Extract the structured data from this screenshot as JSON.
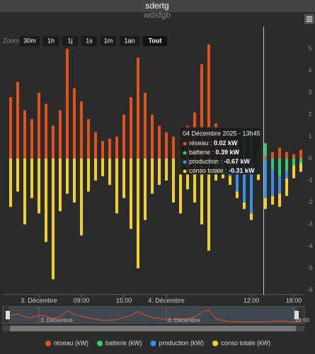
{
  "chart_data": {
    "type": "bar",
    "title": "sdertg",
    "subtitle": "wdsfgb",
    "zoom_label": "Zoom",
    "zoom_buttons": [
      "30m",
      "1h",
      "1j",
      "1s",
      "1m",
      "1an",
      "Tout"
    ],
    "x": [
      -22,
      -21,
      -20,
      -19,
      -18,
      -17,
      -16,
      -15,
      -14,
      -13,
      -12,
      -11,
      -10,
      -9,
      -8,
      -7,
      -6,
      -5,
      -4,
      -3,
      -2,
      -1,
      0,
      1,
      2,
      3,
      4,
      5,
      6,
      7,
      8,
      9,
      10,
      11,
      12,
      13,
      14,
      15,
      16,
      17,
      18,
      19
    ],
    "xlim": [
      -23,
      19.5
    ],
    "xticks": [
      {
        "value": -18,
        "label": "3. Décembre"
      },
      {
        "value": -12,
        "label": "09:00"
      },
      {
        "value": -6,
        "label": "15:00"
      },
      {
        "value": 0,
        "label": "4. Décembre"
      },
      {
        "value": 12,
        "label": "12:00"
      },
      {
        "value": 18,
        "label": "18:00"
      }
    ],
    "ylim": [
      -6,
      6
    ],
    "yticks": [
      -6,
      -5,
      -4,
      -3,
      -2,
      -1,
      0,
      1,
      2,
      3,
      4,
      5
    ],
    "series": [
      {
        "name": "réseau (kW)",
        "color": "#e4521b",
        "values": [
          2.8,
          3.5,
          2.2,
          1.8,
          3.0,
          2.5,
          1.5,
          2.2,
          5.0,
          3.2,
          2.6,
          1.8,
          1.2,
          0.8,
          0.9,
          1.0,
          2.0,
          2.8,
          4.6,
          3.0,
          2.0,
          1.5,
          1.2,
          1.0,
          1.3,
          1.5,
          2.1,
          4.3,
          5.2,
          1.6,
          0.6,
          0.3,
          0.2,
          0.1,
          0.1,
          0.02,
          0.1,
          0.3,
          0.5,
          0.3,
          0.2,
          0.4
        ]
      },
      {
        "name": "batterie (kW)",
        "color": "#2ecc71",
        "values": [
          0,
          0,
          0,
          0,
          0,
          0,
          0,
          0,
          0,
          0,
          0,
          0,
          0,
          0,
          0,
          0,
          0,
          0,
          0,
          0,
          0,
          0,
          0,
          0,
          0,
          0,
          0,
          0,
          0,
          0,
          0.1,
          0.3,
          0.5,
          1.0,
          1.2,
          0.39,
          0.6,
          -0.5,
          -0.8,
          -0.6,
          -0.3,
          -0.2
        ]
      },
      {
        "name": "production (kW)",
        "color": "#3a8ee6",
        "values": [
          0,
          0,
          0,
          0,
          0,
          0,
          0,
          0,
          0,
          0,
          0,
          0,
          0,
          0,
          0,
          0,
          0,
          0,
          0,
          0,
          0,
          0,
          0,
          0,
          0,
          0,
          0,
          0,
          0,
          0,
          -0.3,
          -0.8,
          -1.5,
          -2.0,
          -2.5,
          -0.67,
          -1.8,
          -1.2,
          -0.8,
          -0.3,
          0,
          0
        ]
      },
      {
        "name": "conso totale (kW)",
        "color": "#f2d024",
        "values": [
          -2.2,
          -1.5,
          -3.0,
          -1.8,
          -2.5,
          -3.8,
          -5.5,
          -2.4,
          -1.6,
          -2.0,
          -3.5,
          -1.5,
          -1.0,
          -0.8,
          -1.2,
          -2.5,
          -1.8,
          -3.2,
          -5.0,
          -2.8,
          -1.6,
          -1.2,
          -1.0,
          -2.0,
          -2.5,
          -1.4,
          -2.0,
          -3.0,
          -4.2,
          -1.0,
          -0.6,
          -0.4,
          -0.3,
          -0.3,
          -0.3,
          -0.31,
          -0.5,
          -0.4,
          -0.6,
          -0.8,
          -0.6,
          -0.4
        ]
      }
    ],
    "tooltip": {
      "x": 13.75,
      "title": "04 Décembre 2025 - 13h45",
      "items": [
        {
          "name": "réseau",
          "value_label": "0.02 kW"
        },
        {
          "name": "batterie",
          "value_label": "0.39 kW"
        },
        {
          "name": "production",
          "value_label": "-0.67 kW"
        },
        {
          "name": "conso totale",
          "value_label": "-0.31 kW"
        }
      ]
    },
    "navigator_labels": [
      {
        "value": -18,
        "label": "3. Décembre"
      },
      {
        "value": 0,
        "label": "4. Décembre"
      },
      {
        "value": 18,
        "label": "18:00"
      }
    ]
  }
}
